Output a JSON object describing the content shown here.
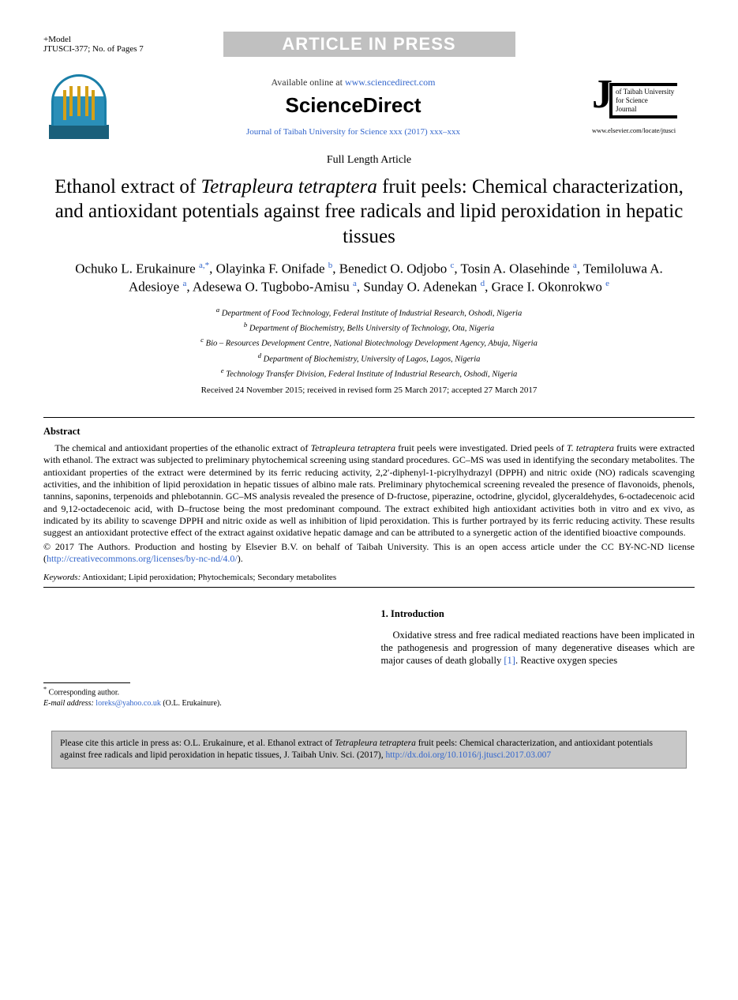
{
  "header": {
    "model": "+Model",
    "docid": "JTUSCI-377;   No. of Pages 7",
    "banner": "ARTICLE IN PRESS"
  },
  "top": {
    "available_prefix": "Available online at ",
    "available_link": "www.sciencedirect.com",
    "brand": "ScienceDirect",
    "journal_citation": "Journal of Taibah University for Science xxx (2017) xxx–xxx",
    "right_logo_lines": [
      "of Taibah University",
      "for Science",
      "Journal"
    ],
    "elsevier_locate": "www.elsevier.com/locate/jtusci"
  },
  "article": {
    "type": "Full Length Article",
    "title_part1": "Ethanol extract of ",
    "title_italic": "Tetrapleura tetraptera",
    "title_part2": " fruit peels: Chemical characterization, and antioxidant potentials against free radicals and lipid peroxidation in hepatic tissues",
    "authors": [
      {
        "name": "Ochuko L. Erukainure",
        "sup": "a,",
        "corr": "*"
      },
      {
        "name": "Olayinka F. Onifade",
        "sup": "b"
      },
      {
        "name": "Benedict O. Odjobo",
        "sup": "c"
      },
      {
        "name": "Tosin A. Olasehinde",
        "sup": "a"
      },
      {
        "name": "Temiloluwa A. Adesioye",
        "sup": "a"
      },
      {
        "name": "Adesewa O. Tugbobo-Amisu",
        "sup": "a"
      },
      {
        "name": "Sunday O. Adenekan",
        "sup": "d"
      },
      {
        "name": "Grace I. Okonrokwo",
        "sup": "e"
      }
    ],
    "affiliations": [
      {
        "key": "a",
        "text": "Department of Food Technology, Federal Institute of Industrial Research, Oshodi, Nigeria"
      },
      {
        "key": "b",
        "text": "Department of Biochemistry, Bells University of Technology, Ota, Nigeria"
      },
      {
        "key": "c",
        "text": "Bio – Resources Development Centre, National Biotechnology Development Agency, Abuja, Nigeria"
      },
      {
        "key": "d",
        "text": "Department of Biochemistry, University of Lagos, Lagos, Nigeria"
      },
      {
        "key": "e",
        "text": "Technology Transfer Division, Federal Institute of Industrial Research, Oshodi, Nigeria"
      }
    ],
    "dates": "Received 24 November 2015; received in revised form 25 March 2017; accepted 27 March 2017"
  },
  "abstract": {
    "heading": "Abstract",
    "body_pre": "The chemical and antioxidant properties of the ethanolic extract of ",
    "body_it1": "Tetrapleura tetraptera",
    "body_mid1": " fruit peels were investigated. Dried peels of ",
    "body_it2": "T. tetraptera",
    "body_post": " fruits were extracted with ethanol. The extract was subjected to preliminary phytochemical screening using standard procedures. GC–MS was used in identifying the secondary metabolites. The antioxidant properties of the extract were determined by its ferric reducing activity, 2,2′-diphenyl-1-picrylhydrazyl (DPPH) and nitric oxide (NO) radicals scavenging activities, and the inhibition of lipid peroxidation in hepatic tissues of albino male rats. Preliminary phytochemical screening revealed the presence of flavonoids, phenols, tannins, saponins, terpenoids and phlebotannin. GC–MS analysis revealed the presence of D-fructose, piperazine, octodrine, glycidol, glyceraldehydes, 6-octadecenoic acid and 9,12-octadecenoic acid, with D–fructose being the most predominant compound. The extract exhibited high antioxidant activities both in vitro and ex vivo, as indicated by its ability to scavenge DPPH and nitric oxide as well as inhibition of lipid peroxidation. This is further portrayed by its ferric reducing activity. These results suggest an antioxidant protective effect of the extract against oxidative hepatic damage and can be attributed to a synergetic action of the identified bioactive compounds.",
    "copyright_pre": "© 2017 The Authors. Production and hosting by Elsevier B.V. on behalf of Taibah University. This is an open access article under the CC BY-NC-ND license (",
    "copyright_link": "http://creativecommons.org/licenses/by-nc-nd/4.0/",
    "copyright_post": ")."
  },
  "keywords": {
    "label": "Keywords:",
    "text": "  Antioxidant; Lipid peroxidation; Phytochemicals; Secondary metabolites"
  },
  "corresponding": {
    "star": "*",
    "label": " Corresponding author.",
    "email_label": "E-mail address: ",
    "email": "loreks@yahoo.co.uk",
    "email_tail": " (O.L. Erukainure)."
  },
  "intro": {
    "heading": "1.  Introduction",
    "p1_pre": "Oxidative stress and free radical mediated reactions have been implicated in the pathogenesis and progression of many degenerative diseases which are major causes of death globally ",
    "p1_ref": "[1]",
    "p1_post": ". Reactive oxygen species"
  },
  "citebox": {
    "text_pre": "Please cite this article in press as: O.L. Erukainure, et al. Ethanol extract of ",
    "text_it": "Tetrapleura tetraptera",
    "text_post": " fruit peels: Chemical characterization, and antioxidant potentials against free radicals and lipid peroxidation in hepatic tissues, J. Taibah Univ. Sci. (2017), ",
    "doi": "http://dx.doi.org/10.1016/j.jtusci.2017.03.007"
  },
  "colors": {
    "link": "#3366cc",
    "banner_bg": "#c0c0c0",
    "citebox_bg": "#c8c8c8"
  }
}
